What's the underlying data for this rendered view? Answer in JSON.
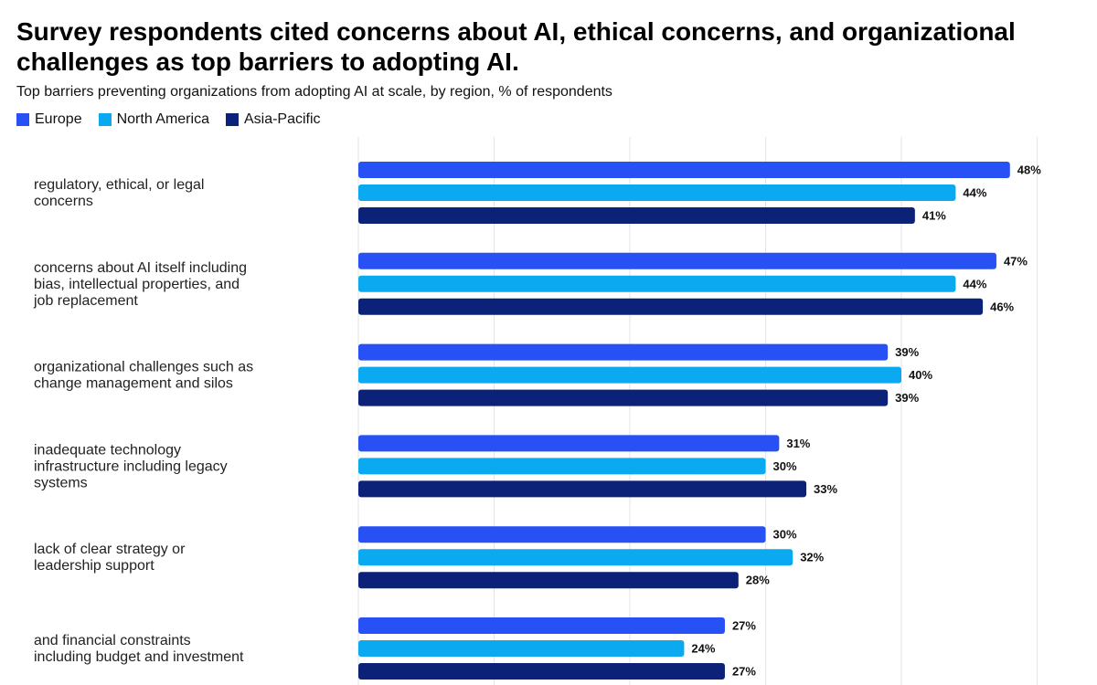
{
  "title": "Survey respondents cited concerns about AI, ethical concerns, and organizational challenges as top barriers to adopting AI.",
  "subtitle": "Top barriers preventing organizations from adopting AI at scale, by region, % of respondents",
  "colors": {
    "europe": "#2750f5",
    "north_america": "#0aa9f0",
    "asia_pacific": "#0b2278",
    "grid": "#e3e3e8"
  },
  "legend": [
    {
      "label": "Europe",
      "color": "#2750f5"
    },
    {
      "label": "North America",
      "color": "#0aa9f0"
    },
    {
      "label": "Asia-Pacific",
      "color": "#0b2278"
    }
  ],
  "chart_data": {
    "type": "bar",
    "orientation": "horizontal",
    "categories": [
      [
        "regulatory, ethical, or legal",
        "concerns"
      ],
      [
        "concerns about AI itself including",
        "bias, intellectual properties, and",
        "job replacement"
      ],
      [
        "organizational challenges such as",
        "change management and silos"
      ],
      [
        "inadequate technology",
        "infrastructure including legacy",
        "systems"
      ],
      [
        "lack of clear strategy or",
        "leadership support"
      ],
      [
        "and financial constraints",
        "including budget and investment"
      ]
    ],
    "series": [
      {
        "name": "Europe",
        "values": [
          48,
          47,
          39,
          31,
          30,
          27
        ]
      },
      {
        "name": "North America",
        "values": [
          44,
          44,
          40,
          30,
          32,
          24
        ]
      },
      {
        "name": "Asia-Pacific",
        "values": [
          41,
          46,
          39,
          33,
          28,
          27
        ]
      }
    ],
    "value_suffix": "%",
    "xlim": [
      0,
      50
    ],
    "grid": true,
    "legend_position": "top-left",
    "data_labels": true
  }
}
